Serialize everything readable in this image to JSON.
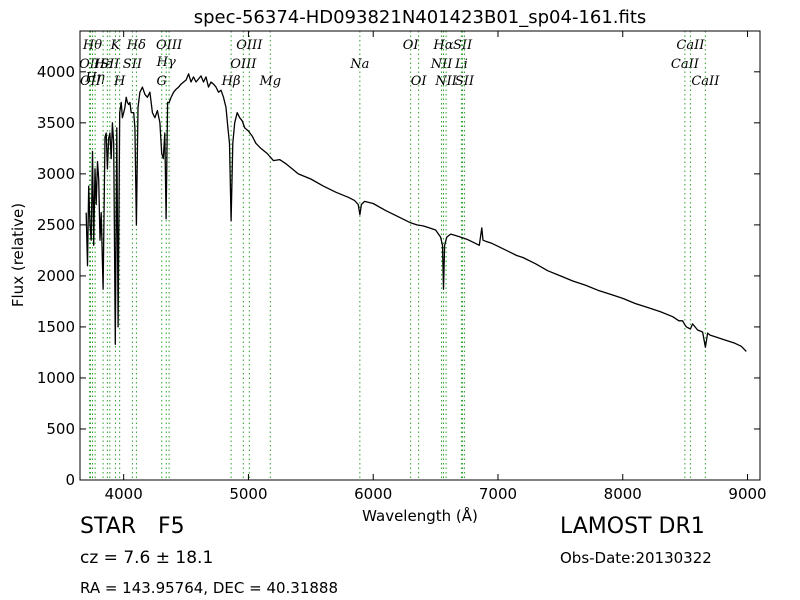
{
  "chart_data": {
    "type": "line",
    "title": "spec-56374-HD093821N401423B01_sp04-161.fits",
    "xlabel": "Wavelength (Å)",
    "ylabel": "Flux (relative)",
    "xlim": [
      3650,
      9100
    ],
    "ylim": [
      0,
      4400
    ],
    "xticks": [
      4000,
      5000,
      6000,
      7000,
      8000,
      9000
    ],
    "yticks": [
      0,
      500,
      1000,
      1500,
      2000,
      2500,
      3000,
      3500,
      4000
    ],
    "grid": false,
    "line_color": "#000000",
    "marker_color": "#2ca02c",
    "spectrum": {
      "x": [
        3700,
        3710,
        3720,
        3730,
        3740,
        3750,
        3760,
        3770,
        3780,
        3790,
        3800,
        3810,
        3820,
        3835,
        3850,
        3860,
        3870,
        3880,
        3890,
        3900,
        3910,
        3920,
        3933,
        3945,
        3955,
        3968,
        3980,
        3990,
        4000,
        4010,
        4020,
        4030,
        4040,
        4050,
        4060,
        4080,
        4090,
        4102,
        4115,
        4130,
        4150,
        4170,
        4190,
        4210,
        4230,
        4250,
        4270,
        4290,
        4305,
        4318,
        4330,
        4340,
        4352,
        4365,
        4380,
        4400,
        4420,
        4440,
        4460,
        4480,
        4500,
        4520,
        4540,
        4560,
        4580,
        4600,
        4620,
        4640,
        4660,
        4680,
        4700,
        4720,
        4740,
        4760,
        4780,
        4800,
        4820,
        4835,
        4848,
        4861,
        4875,
        4890,
        4910,
        4930,
        4950,
        4970,
        5000,
        5030,
        5060,
        5100,
        5150,
        5200,
        5250,
        5300,
        5350,
        5400,
        5500,
        5600,
        5700,
        5800,
        5850,
        5880,
        5893,
        5905,
        5930,
        6000,
        6100,
        6200,
        6300,
        6350,
        6400,
        6450,
        6500,
        6540,
        6555,
        6563,
        6572,
        6590,
        6620,
        6650,
        6700,
        6750,
        6800,
        6850,
        6870,
        6880,
        6900,
        6950,
        7000,
        7100,
        7150,
        7200,
        7300,
        7400,
        7500,
        7600,
        7700,
        7800,
        7900,
        8000,
        8100,
        8200,
        8300,
        8400,
        8450,
        8480,
        8498,
        8510,
        8542,
        8560,
        8600,
        8640,
        8662,
        8680,
        8700,
        8750,
        8800,
        8850,
        8900,
        8950,
        8990
      ],
      "y": [
        2620,
        2100,
        2880,
        2500,
        2350,
        3220,
        2300,
        3050,
        2700,
        3120,
        2950,
        2350,
        2620,
        1870,
        3360,
        3400,
        3050,
        3350,
        3400,
        3150,
        3500,
        3300,
        1330,
        3450,
        1500,
        3600,
        3700,
        3550,
        3600,
        3650,
        3750,
        3700,
        3680,
        3700,
        3600,
        3600,
        3450,
        2500,
        3650,
        3800,
        3850,
        3780,
        3750,
        3800,
        3600,
        3550,
        3620,
        3500,
        3200,
        3150,
        3400,
        2560,
        3700,
        3700,
        3750,
        3800,
        3830,
        3850,
        3880,
        3900,
        3920,
        3980,
        3900,
        3950,
        3900,
        3930,
        3960,
        3900,
        3950,
        3850,
        3900,
        3880,
        3850,
        3800,
        3820,
        3750,
        3650,
        3450,
        3300,
        2540,
        3300,
        3500,
        3600,
        3550,
        3520,
        3450,
        3420,
        3370,
        3300,
        3250,
        3200,
        3130,
        3140,
        3100,
        3050,
        3000,
        2950,
        2880,
        2820,
        2770,
        2740,
        2700,
        2600,
        2700,
        2730,
        2710,
        2640,
        2580,
        2520,
        2500,
        2490,
        2470,
        2450,
        2380,
        2300,
        1870,
        2300,
        2380,
        2410,
        2400,
        2380,
        2360,
        2330,
        2300,
        2470,
        2350,
        2340,
        2320,
        2290,
        2230,
        2200,
        2180,
        2120,
        2050,
        2000,
        1950,
        1910,
        1860,
        1820,
        1780,
        1730,
        1690,
        1650,
        1600,
        1560,
        1560,
        1520,
        1500,
        1480,
        1530,
        1470,
        1450,
        1300,
        1440,
        1420,
        1400,
        1380,
        1360,
        1340,
        1310,
        1260
      ]
    },
    "markers": [
      {
        "x": 3727,
        "label": "OII",
        "row": 1
      },
      {
        "x": 3734,
        "label": "OII",
        "row": 2
      },
      {
        "x": 3750,
        "label": "Hθ",
        "row": 0
      },
      {
        "x": 3771,
        "label": "Hη",
        "row": 1.7
      },
      {
        "x": 3835,
        "label": "Hε",
        "row": 1
      },
      {
        "x": 3869,
        "label": "",
        "row": 0
      },
      {
        "x": 3889,
        "label": "SII",
        "row": 1
      },
      {
        "x": 3934,
        "label": "K",
        "row": 0
      },
      {
        "x": 3968,
        "label": "H",
        "row": 2
      },
      {
        "x": 4070,
        "label": "SII",
        "row": 1
      },
      {
        "x": 4102,
        "label": "Hδ",
        "row": 0
      },
      {
        "x": 4305,
        "label": "G",
        "row": 2
      },
      {
        "x": 4341,
        "label": "Hγ",
        "row": 0.9
      },
      {
        "x": 4364,
        "label": "OIII",
        "row": 0
      },
      {
        "x": 4861,
        "label": "Hβ",
        "row": 2
      },
      {
        "x": 4959,
        "label": "OIII",
        "row": 1
      },
      {
        "x": 5007,
        "label": "OIII",
        "row": 0
      },
      {
        "x": 5175,
        "label": "Mg",
        "row": 2
      },
      {
        "x": 5893,
        "label": "Na",
        "row": 1
      },
      {
        "x": 6300,
        "label": "OI",
        "row": 0
      },
      {
        "x": 6364,
        "label": "OI",
        "row": 2
      },
      {
        "x": 6548,
        "label": "NII",
        "row": 1
      },
      {
        "x": 6563,
        "label": "Hα",
        "row": 0
      },
      {
        "x": 6584,
        "label": "NII",
        "row": 2
      },
      {
        "x": 6707,
        "label": "Li",
        "row": 1
      },
      {
        "x": 6716,
        "label": "SII",
        "row": 0
      },
      {
        "x": 6731,
        "label": "SII",
        "row": 2
      },
      {
        "x": 8498,
        "label": "CaII",
        "row": 1
      },
      {
        "x": 8542,
        "label": "CaII",
        "row": 0
      },
      {
        "x": 8662,
        "label": "CaII",
        "row": 2
      }
    ]
  },
  "info": {
    "class_label": "STAR",
    "subclass": "F5",
    "redshift": "cz = 7.6 ± 18.1",
    "coordinates": "RA = 143.95764, DEC = 40.31888",
    "survey": "LAMOST DR1",
    "obs_date": "Obs-Date:20130322"
  }
}
